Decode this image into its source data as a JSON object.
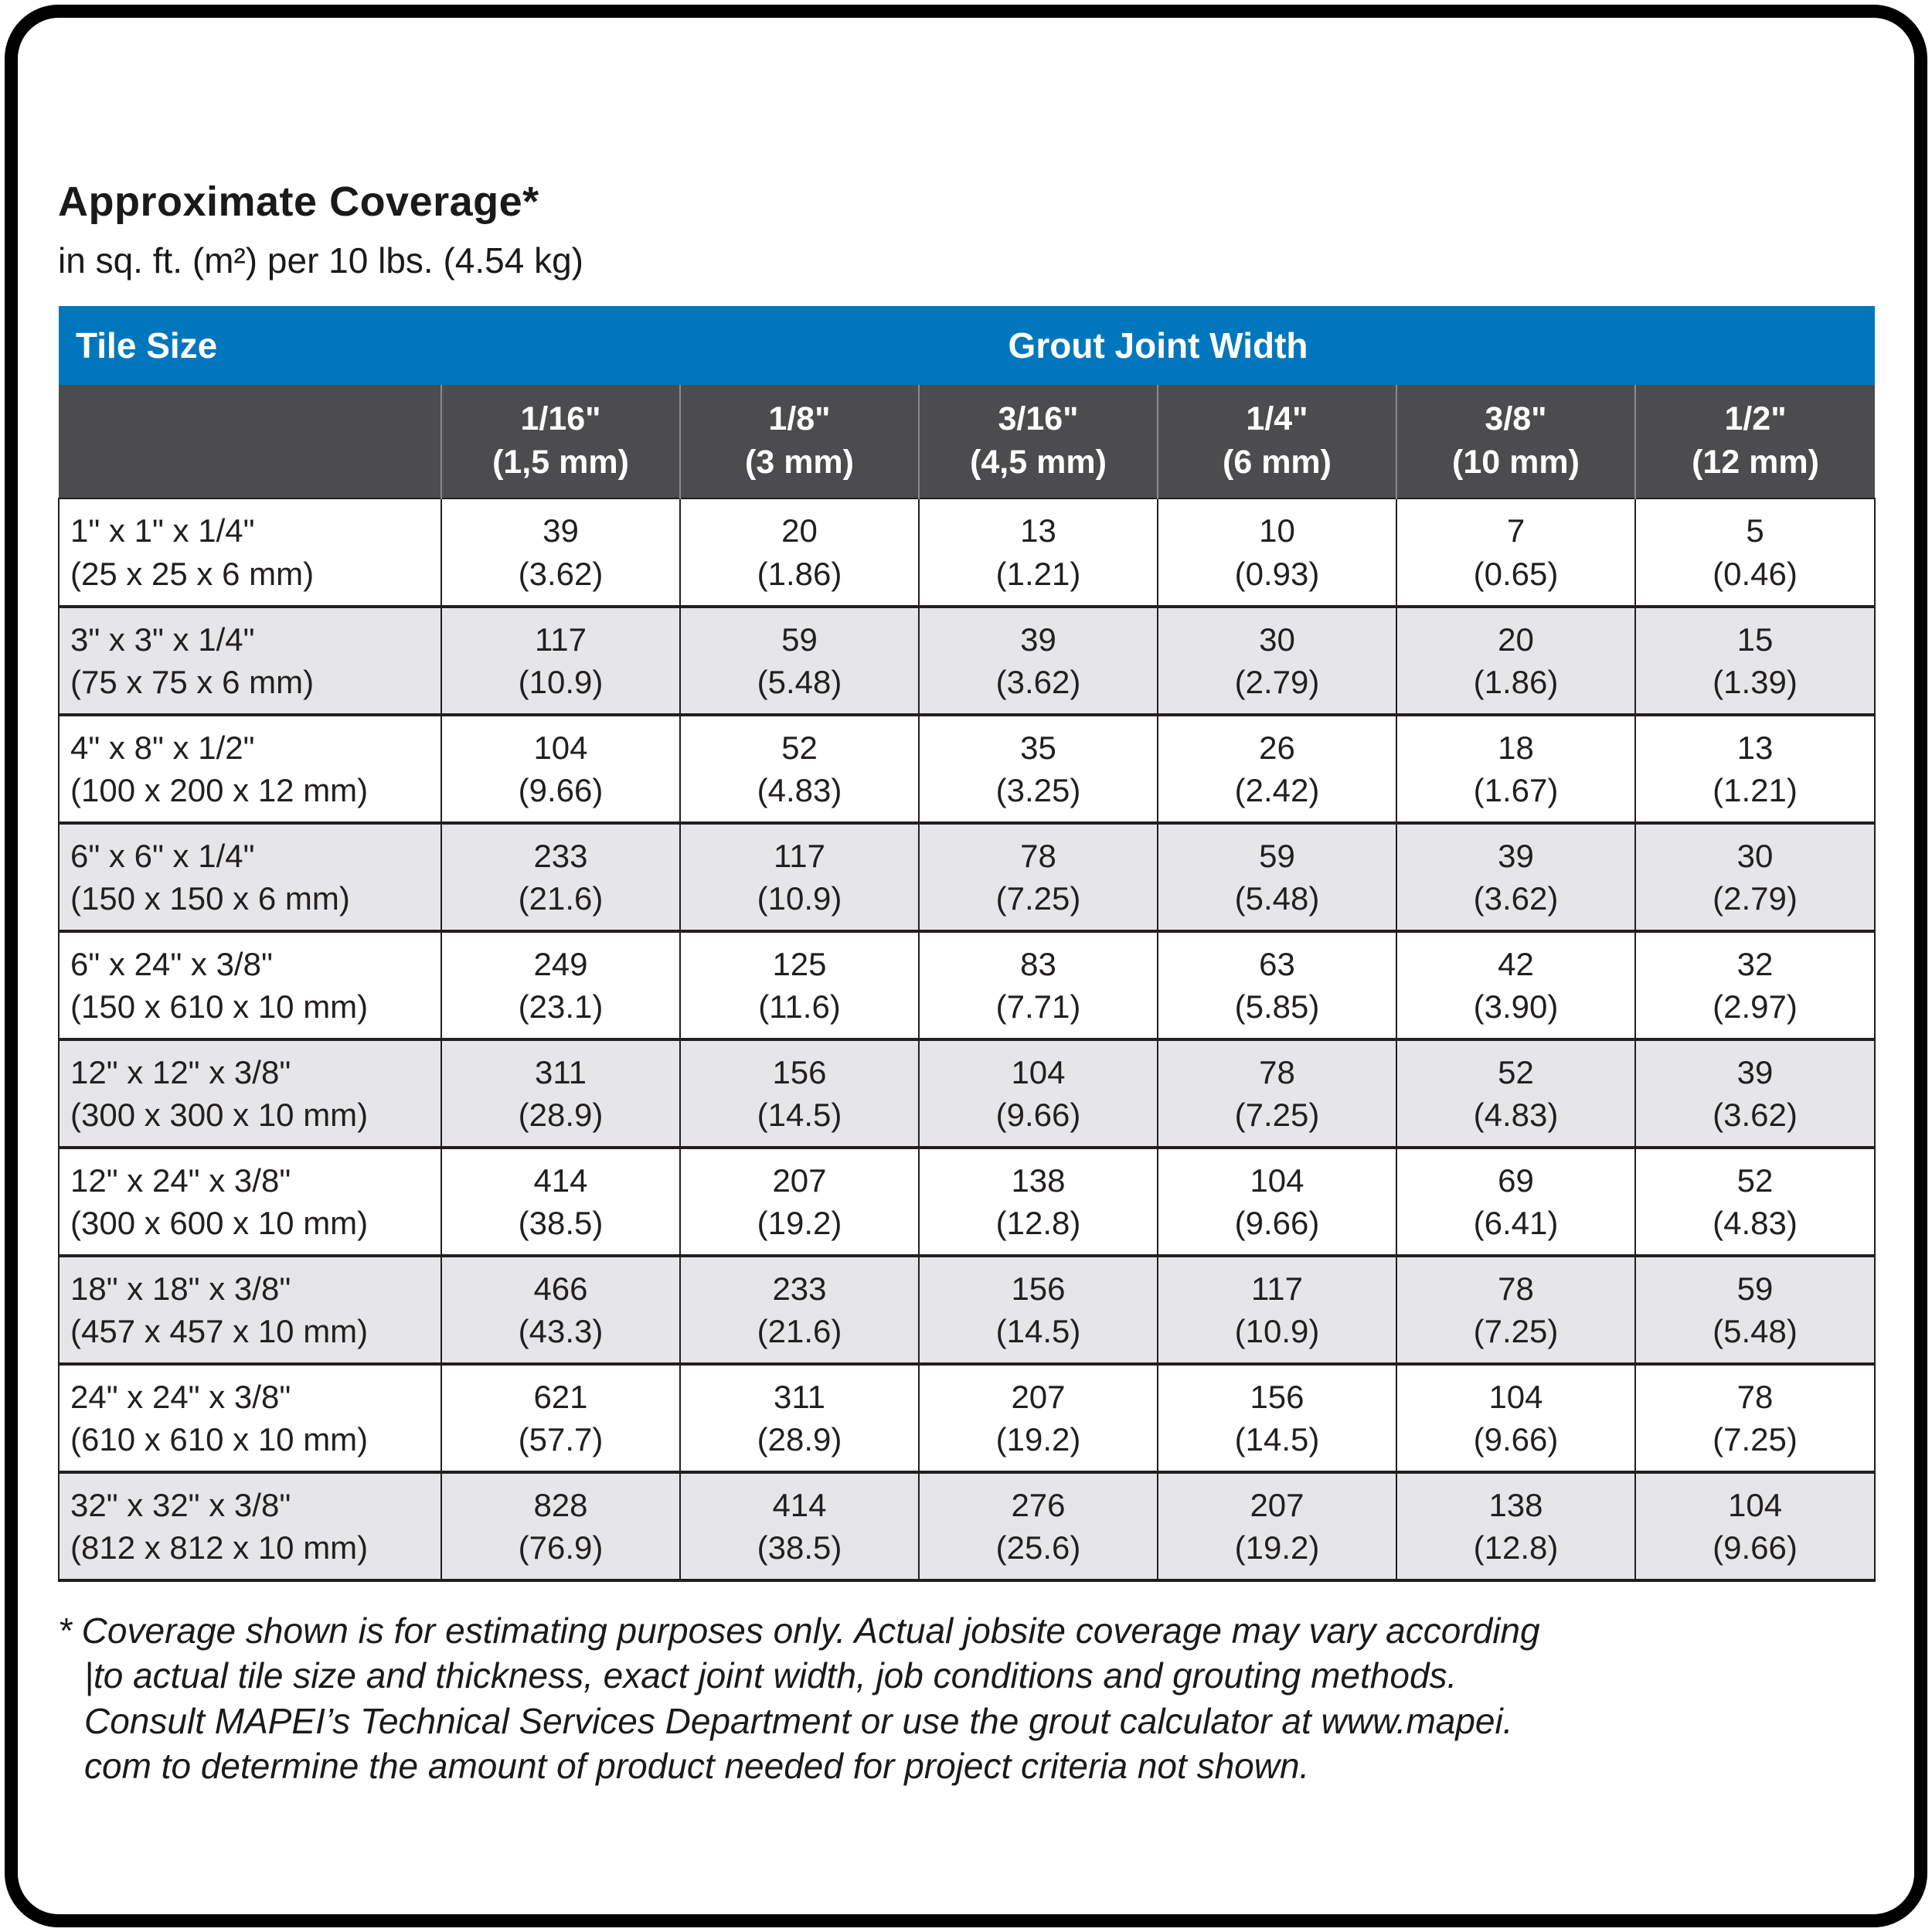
{
  "page": {
    "title": "Approximate Coverage*",
    "subtitle": "in sq. ft. (m²) per 10 lbs. (4.54 kg)"
  },
  "table": {
    "tile_size_header": "Tile Size",
    "grout_joint_width_header": "Grout Joint Width",
    "columns": [
      {
        "inch": "1/16\"",
        "mm": "(1,5 mm)"
      },
      {
        "inch": "1/8\"",
        "mm": "(3 mm)"
      },
      {
        "inch": "3/16\"",
        "mm": "(4,5 mm)"
      },
      {
        "inch": "1/4\"",
        "mm": "(6 mm)"
      },
      {
        "inch": "3/8\"",
        "mm": "(10 mm)"
      },
      {
        "inch": "1/2\"",
        "mm": "(12 mm)"
      }
    ],
    "rows": [
      {
        "size_in": "1\" x 1\" x 1/4\"",
        "size_mm": "(25 x 25 x 6 mm)",
        "cells": [
          [
            "39",
            "(3.62)"
          ],
          [
            "20",
            "(1.86)"
          ],
          [
            "13",
            "(1.21)"
          ],
          [
            "10",
            "(0.93)"
          ],
          [
            "7",
            "(0.65)"
          ],
          [
            "5",
            "(0.46)"
          ]
        ]
      },
      {
        "size_in": "3\" x 3\" x 1/4\"",
        "size_mm": "(75 x 75 x 6 mm)",
        "cells": [
          [
            "117",
            "(10.9)"
          ],
          [
            "59",
            "(5.48)"
          ],
          [
            "39",
            "(3.62)"
          ],
          [
            "30",
            "(2.79)"
          ],
          [
            "20",
            "(1.86)"
          ],
          [
            "15",
            "(1.39)"
          ]
        ]
      },
      {
        "size_in": "4\" x 8\" x 1/2\"",
        "size_mm": "(100 x 200 x 12 mm)",
        "cells": [
          [
            "104",
            "(9.66)"
          ],
          [
            "52",
            "(4.83)"
          ],
          [
            "35",
            "(3.25)"
          ],
          [
            "26",
            "(2.42)"
          ],
          [
            "18",
            "(1.67)"
          ],
          [
            "13",
            "(1.21)"
          ]
        ]
      },
      {
        "size_in": "6\" x 6\" x 1/4\"",
        "size_mm": "(150 x 150 x 6 mm)",
        "cells": [
          [
            "233",
            "(21.6)"
          ],
          [
            "117",
            "(10.9)"
          ],
          [
            "78",
            "(7.25)"
          ],
          [
            "59",
            "(5.48)"
          ],
          [
            "39",
            "(3.62)"
          ],
          [
            "30",
            "(2.79)"
          ]
        ]
      },
      {
        "size_in": "6\" x 24\" x 3/8\"",
        "size_mm": "(150 x 610 x 10 mm)",
        "cells": [
          [
            "249",
            "(23.1)"
          ],
          [
            "125",
            "(11.6)"
          ],
          [
            "83",
            "(7.71)"
          ],
          [
            "63",
            "(5.85)"
          ],
          [
            "42",
            "(3.90)"
          ],
          [
            "32",
            "(2.97)"
          ]
        ]
      },
      {
        "size_in": "12\" x 12\" x 3/8\"",
        "size_mm": "(300 x 300 x 10 mm)",
        "cells": [
          [
            "311",
            "(28.9)"
          ],
          [
            "156",
            "(14.5)"
          ],
          [
            "104",
            "(9.66)"
          ],
          [
            "78",
            "(7.25)"
          ],
          [
            "52",
            "(4.83)"
          ],
          [
            "39",
            "(3.62)"
          ]
        ]
      },
      {
        "size_in": "12\" x 24\" x 3/8\"",
        "size_mm": "(300 x 600 x 10 mm)",
        "cells": [
          [
            "414",
            "(38.5)"
          ],
          [
            "207",
            "(19.2)"
          ],
          [
            "138",
            "(12.8)"
          ],
          [
            "104",
            "(9.66)"
          ],
          [
            "69",
            "(6.41)"
          ],
          [
            "52",
            "(4.83)"
          ]
        ]
      },
      {
        "size_in": "18\" x 18\" x 3/8\"",
        "size_mm": "(457 x 457 x 10 mm)",
        "cells": [
          [
            "466",
            "(43.3)"
          ],
          [
            "233",
            "(21.6)"
          ],
          [
            "156",
            "(14.5)"
          ],
          [
            "117",
            "(10.9)"
          ],
          [
            "78",
            "(7.25)"
          ],
          [
            "59",
            "(5.48)"
          ]
        ]
      },
      {
        "size_in": "24\" x 24\" x 3/8\"",
        "size_mm": "(610 x 610 x 10 mm)",
        "cells": [
          [
            "621",
            "(57.7)"
          ],
          [
            "311",
            "(28.9)"
          ],
          [
            "207",
            "(19.2)"
          ],
          [
            "156",
            "(14.5)"
          ],
          [
            "104",
            "(9.66)"
          ],
          [
            "78",
            "(7.25)"
          ]
        ]
      },
      {
        "size_in": "32\" x 32\" x 3/8\"",
        "size_mm": "(812 x 812 x 10 mm)",
        "cells": [
          [
            "828",
            "(76.9)"
          ],
          [
            "414",
            "(38.5)"
          ],
          [
            "276",
            "(25.6)"
          ],
          [
            "207",
            "(19.2)"
          ],
          [
            "138",
            "(12.8)"
          ],
          [
            "104",
            "(9.66)"
          ]
        ]
      }
    ]
  },
  "footnote": {
    "lines": [
      "* Coverage shown is for estimating purposes only. Actual jobsite coverage may vary according",
      "|to actual tile size and thickness, exact joint width, job conditions and grouting methods.",
      "Consult MAPEI’s Technical Services Department or use the grout calculator at www.mapei.",
      "com to determine the amount of product needed for project criteria not shown."
    ]
  },
  "colors": {
    "header_blue": "#0077BD",
    "header_dark": "#4C4C4E",
    "row_alt": "#E6E6E8",
    "text": "#231F20",
    "frame": "#000000"
  }
}
